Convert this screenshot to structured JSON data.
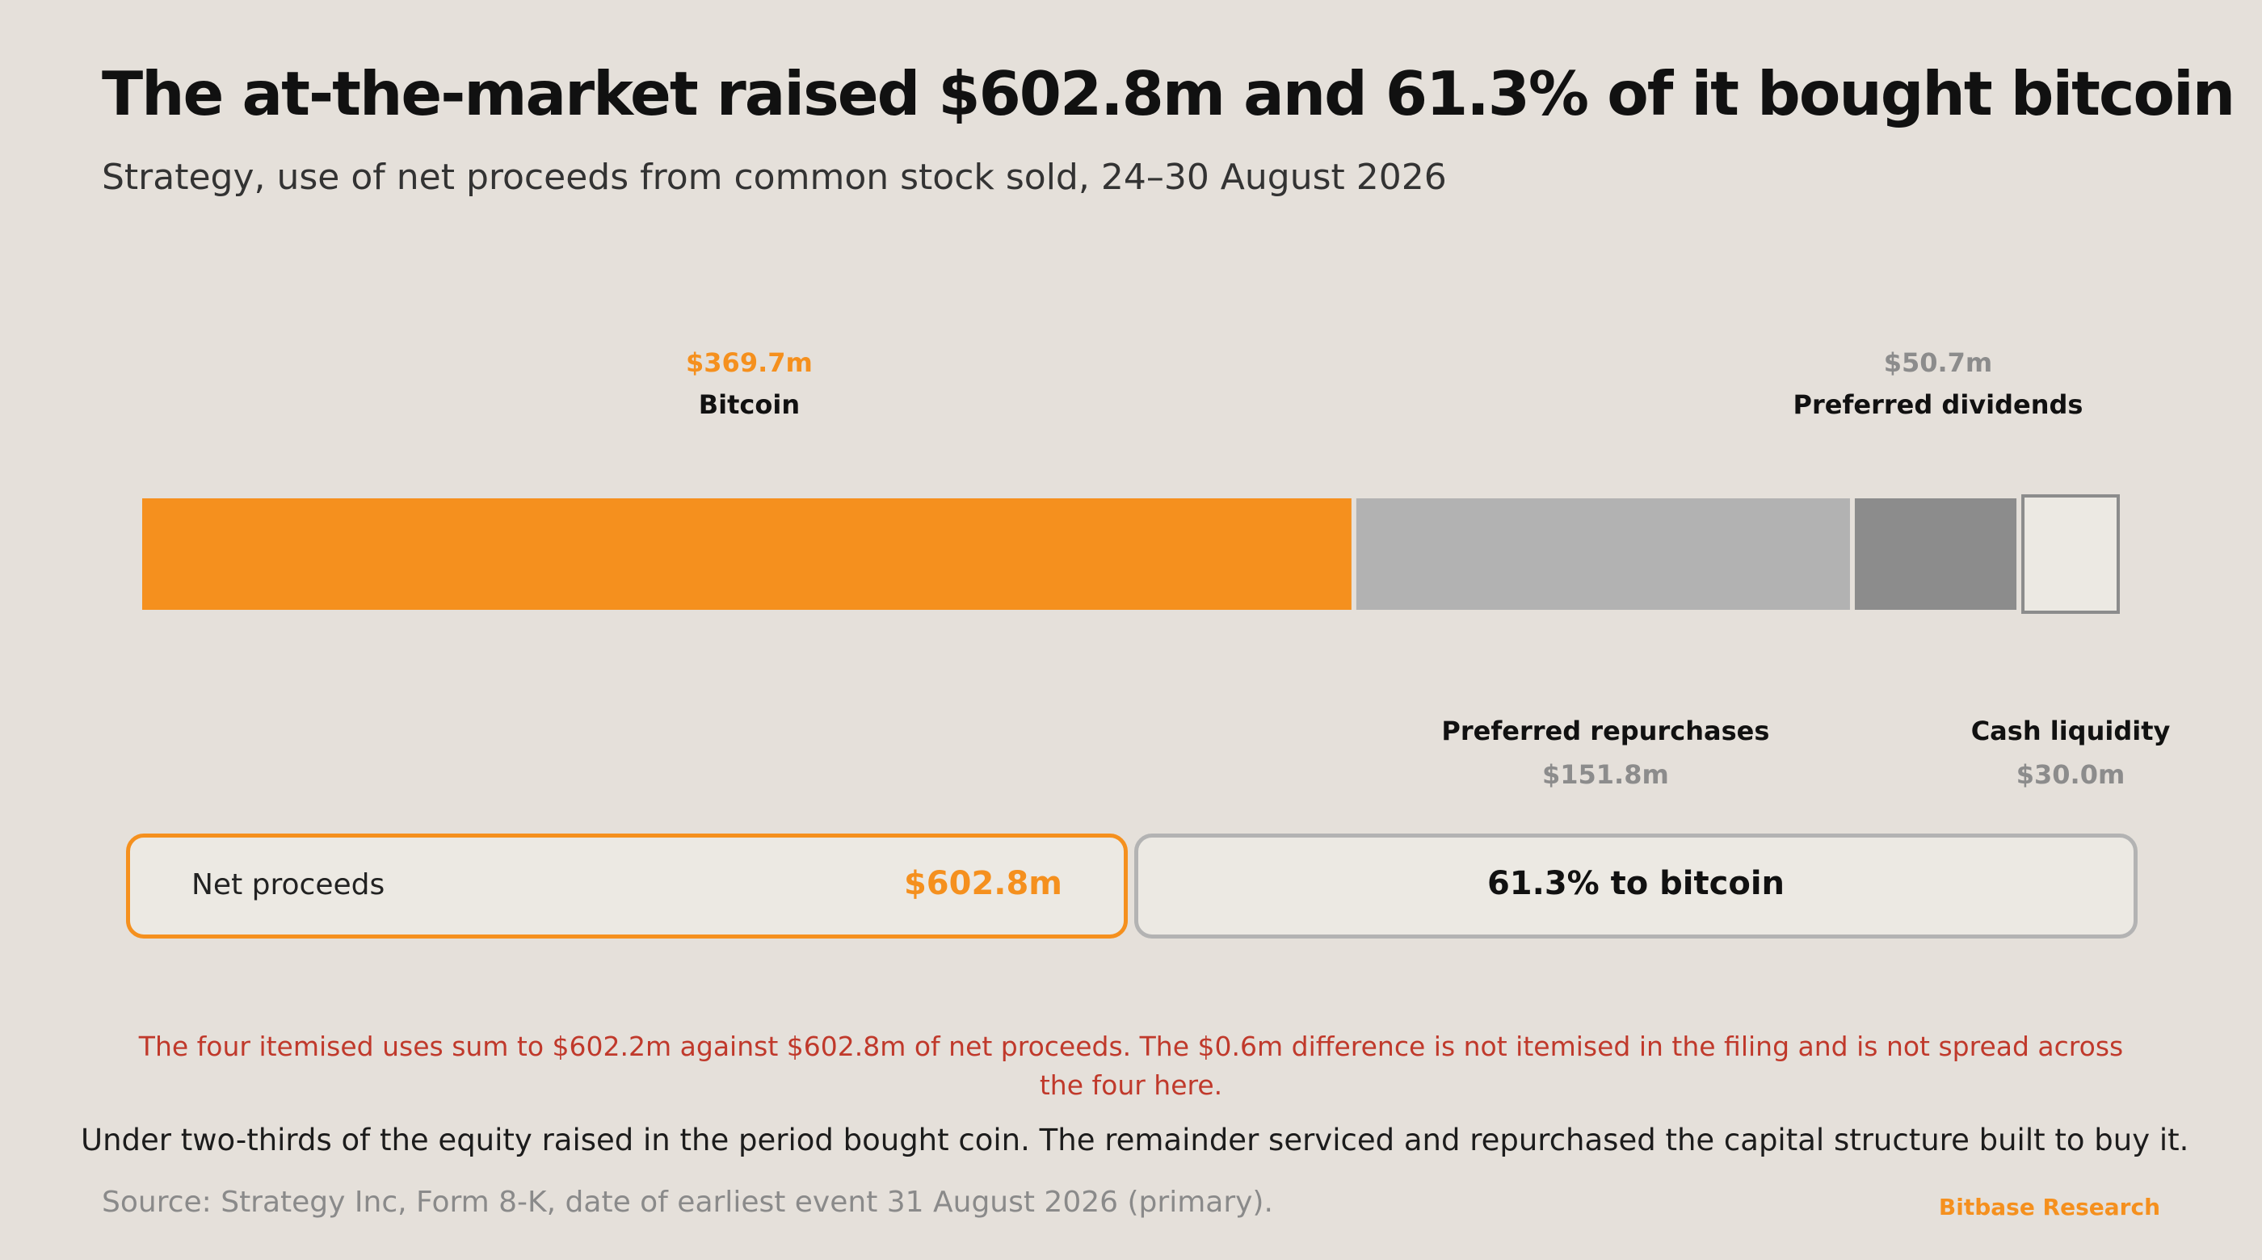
{
  "title": "The at-the-market raised $602.8m and 61.3% of it bought bitcoin",
  "subtitle": "Strategy, use of net proceeds from common stock sold, 24–30 August 2026",
  "chart_data": {
    "type": "bar",
    "orientation": "horizontal-stacked",
    "unit": "$m",
    "total": 602.8,
    "segments": [
      {
        "name": "Bitcoin",
        "value": 369.7,
        "value_label": "$369.7m",
        "color": "#f5901e",
        "value_color": "#f5901e",
        "label_position": "above"
      },
      {
        "name": "Preferred repurchases",
        "value": 151.8,
        "value_label": "$151.8m",
        "color": "#b2b2b2",
        "value_color": "#8c8c8c",
        "label_position": "below"
      },
      {
        "name": "Preferred dividends",
        "value": 50.7,
        "value_label": "$50.7m",
        "color": "#8c8c8c",
        "value_color": "#8c8c8c",
        "label_position": "above"
      },
      {
        "name": "Cash liquidity",
        "value": 30.0,
        "value_label": "$30.0m",
        "color": "#ece9e3",
        "value_color": "#8c8c8c",
        "label_position": "below"
      }
    ],
    "grid": false,
    "legend": "none"
  },
  "summary": {
    "proceeds_label": "Net proceeds",
    "proceeds_value": "$602.8m",
    "share_text": "61.3% to bitcoin"
  },
  "note": "The four itemised uses sum to $602.2m against $602.8m of net proceeds. The $0.6m difference is not itemised in the filing and is not spread across the four here.",
  "takeaway": "Under two-thirds of the equity raised in the period bought coin. The remainder serviced and repurchased the capital structure built to buy it.",
  "source": "Source: Strategy Inc, Form 8-K, date of earliest event 31 August 2026 (primary).",
  "brand": "Bitbase Research",
  "colors": {
    "background": "#e5e0da",
    "accent": "#f5901e",
    "note": "#c0392b"
  }
}
